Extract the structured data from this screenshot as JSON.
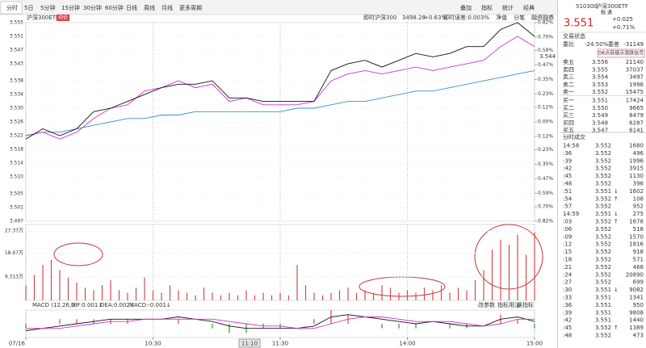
{
  "toolbar": {
    "tabs": [
      "分时",
      "5日",
      "5分钟",
      "15分钟",
      "30分钟",
      "60分钟",
      "日线",
      "周线",
      "月线",
      "更多周期"
    ],
    "tools": [
      "叠加",
      "指标",
      "统计",
      "经典"
    ]
  },
  "info": {
    "name": "沪深300ETF",
    "tag": "均价",
    "index_name": "即时沪深300",
    "index_value": "3498.28",
    "index_change": "+0.63%",
    "error": "即时误差:0.003%",
    "links": [
      "净值",
      "分笔",
      "融资融券"
    ]
  },
  "crosshair": {
    "time": "11:10",
    "price": "3.544"
  },
  "chart_data": [
    {
      "type": "line",
      "x": [
        0,
        8,
        16,
        24,
        32,
        40,
        48,
        56,
        64,
        72,
        80,
        88,
        96,
        104,
        112,
        120,
        128,
        136,
        144,
        152,
        160,
        168,
        176,
        184,
        192,
        200,
        208,
        216,
        224,
        232,
        240
      ],
      "xlim": [
        0,
        240
      ],
      "ylim": [
        3.497,
        3.555
      ],
      "yticks": [
        3.555,
        3.551,
        3.547,
        3.543,
        3.538,
        3.534,
        {
          "value": 3.53,
          "label": "3.530"
        },
        3.526,
        3.522,
        3.518,
        3.514,
        {
          "value": 3.51,
          "label": "3.510"
        },
        3.505,
        3.501,
        3.497
      ],
      "y2lim": [
        -0.82,
        0.82
      ],
      "y2ticks": [
        {
          "value": 0.82,
          "label": "0.82%"
        },
        {
          "value": 0.7,
          "label": "0.70%"
        },
        {
          "value": 0.59,
          "label": "0.59%"
        },
        {
          "value": 0.47,
          "label": "0.47%"
        },
        {
          "value": 0.35,
          "label": "0.35%"
        },
        {
          "value": 0.23,
          "label": "0.23%"
        },
        {
          "value": 0.12,
          "label": "0.12%"
        },
        {
          "value": 0,
          "label": "0.00%"
        },
        {
          "value": -0.12,
          "label": "0.12%"
        },
        {
          "value": -0.23,
          "label": "0.23%"
        },
        {
          "value": -0.35,
          "label": "0.35%"
        },
        {
          "value": -0.47,
          "label": "0.47%"
        },
        {
          "value": -0.59,
          "label": "0.59%"
        },
        {
          "value": -0.7,
          "label": "0.70%"
        },
        {
          "value": -0.82,
          "label": "0.82%"
        }
      ],
      "series": [
        {
          "color": "#3a8fd0",
          "values": [
            3.522,
            3.523,
            3.523,
            3.524,
            3.525,
            3.526,
            3.527,
            3.527,
            3.528,
            3.528,
            3.529,
            3.529,
            3.529,
            3.529,
            3.529,
            3.529,
            3.53,
            3.53,
            3.531,
            3.532,
            3.532,
            3.533,
            3.534,
            3.535,
            3.535,
            3.536,
            3.537,
            3.538,
            3.539,
            3.54,
            3.541
          ]
        },
        {
          "color": "#cc33cc",
          "values": [
            3.522,
            3.523,
            3.521,
            3.523,
            3.527,
            3.53,
            3.531,
            3.535,
            3.536,
            3.538,
            3.536,
            3.537,
            3.532,
            3.533,
            3.531,
            3.531,
            3.531,
            3.532,
            3.538,
            3.54,
            3.541,
            3.54,
            3.541,
            3.542,
            3.541,
            3.542,
            3.543,
            3.544,
            3.548,
            3.551,
            3.548
          ]
        },
        {
          "color": "#111111",
          "values": [
            3.521,
            3.524,
            3.522,
            3.524,
            3.529,
            3.53,
            3.532,
            3.534,
            3.536,
            3.537,
            3.537,
            3.538,
            3.533,
            3.533,
            3.532,
            3.532,
            3.532,
            3.532,
            3.541,
            3.543,
            3.544,
            3.542,
            3.544,
            3.546,
            3.545,
            3.546,
            3.548,
            3.548,
            3.553,
            3.555,
            3.551
          ]
        }
      ]
    },
    {
      "type": "bar",
      "x": [
        0,
        4,
        8,
        12,
        16,
        20,
        24,
        28,
        32,
        36,
        40,
        44,
        48,
        52,
        56,
        60,
        64,
        68,
        72,
        76,
        80,
        84,
        88,
        92,
        96,
        100,
        104,
        108,
        112,
        116,
        120,
        124,
        128,
        132,
        136,
        140,
        144,
        148,
        152,
        156,
        160,
        164,
        168,
        172,
        176,
        180,
        184,
        188,
        192,
        196,
        200,
        204,
        208,
        212,
        216,
        220,
        224,
        228,
        232,
        236,
        240
      ],
      "xlim": [
        0,
        240
      ],
      "ylim": [
        0,
        30
      ],
      "yticks": [
        {
          "value": 27.37,
          "label": "27.37万"
        },
        {
          "value": 18.67,
          "label": "18.67万"
        },
        {
          "value": 9.313,
          "label": "9.313万"
        }
      ],
      "color": "#d24b4b",
      "values": [
        6,
        10,
        14,
        16,
        12,
        9,
        7,
        5,
        4,
        6,
        8,
        4,
        3,
        5,
        9,
        4,
        3,
        6,
        4,
        3,
        2,
        5,
        3,
        2,
        3,
        2,
        4,
        2,
        3,
        2,
        3,
        2,
        14,
        6,
        3,
        2,
        3,
        4,
        5,
        3,
        4,
        3,
        6,
        5,
        3,
        4,
        3,
        5,
        4,
        6,
        3,
        5,
        4,
        8,
        12,
        20,
        24,
        22,
        26,
        18,
        27
      ]
    },
    {
      "type": "macd",
      "title": "MACD (12,26,9)",
      "labels": [
        {
          "text": "DIF:0.001↓",
          "color": "#111111"
        },
        {
          "text": "DEA:0.002↓",
          "color": "#cc33cc"
        },
        {
          "text": "MACD:-0.001↓",
          "color": "#2a9a2a"
        }
      ],
      "tools": [
        "改参数",
        "指标用法",
        "换指标"
      ],
      "x": [
        0,
        8,
        16,
        24,
        32,
        40,
        48,
        56,
        64,
        72,
        80,
        88,
        96,
        104,
        112,
        120,
        128,
        136,
        144,
        152,
        160,
        168,
        176,
        184,
        192,
        200,
        208,
        216,
        224,
        232,
        240
      ],
      "xlim": [
        0,
        240
      ],
      "ylim": [
        -0.006,
        0.006
      ],
      "xticks": [
        {
          "value": 0,
          "label": "07/16"
        },
        {
          "value": 60,
          "label": "10:30"
        },
        {
          "value": 120,
          "label": "11:30"
        },
        {
          "value": 180,
          "label": "14:00"
        },
        {
          "value": 240,
          "label": "15:00"
        }
      ],
      "series": [
        {
          "color": "#111111",
          "values": [
            -0.003,
            -0.002,
            -0.001,
            0,
            0.001,
            0.002,
            0.002,
            0.002,
            0.002,
            0.003,
            0.002,
            0.001,
            -0.001,
            -0.002,
            -0.002,
            -0.002,
            -0.002,
            -0.001,
            0.003,
            0.004,
            0.003,
            0.002,
            0.001,
            0,
            0.001,
            0,
            -0.001,
            -0.001,
            0.002,
            0.003,
            0.001
          ]
        },
        {
          "color": "#cc33cc",
          "values": [
            -0.002,
            -0.002,
            -0.002,
            -0.001,
            0,
            0.001,
            0.001,
            0.002,
            0.002,
            0.002,
            0.002,
            0.002,
            0.001,
            0,
            -0.001,
            -0.001,
            -0.002,
            -0.002,
            0,
            0.002,
            0.003,
            0.003,
            0.002,
            0.001,
            0.001,
            0.001,
            0,
            -0.001,
            0,
            0.002,
            0.002
          ]
        }
      ],
      "bars": {
        "up_color": "#e04040",
        "down_color": "#2a9a2a",
        "values": [
          -0.002,
          0,
          0.002,
          0.002,
          0.002,
          0.002,
          0.002,
          0,
          0,
          0.002,
          0,
          -0.002,
          -0.004,
          -0.004,
          -0.002,
          -0.002,
          0,
          0.002,
          0.006,
          0.004,
          0,
          -0.002,
          -0.002,
          -0.002,
          0,
          -0.002,
          -0.002,
          0,
          0.004,
          0.002,
          -0.002
        ]
      }
    }
  ],
  "quote": {
    "code": "510300",
    "name": "沪深300ETF",
    "tags": "融 通",
    "price": "3.551",
    "change": "+0.025",
    "pct": "+0.71%",
    "status": "交易状态",
    "ratio_label": "委比",
    "ratio": "-24.50%",
    "diff_label": "委差",
    "diff": "-31149",
    "signal": "DK点获提示涨跌信号",
    "book": [
      [
        "卖五",
        "3.556",
        "21140"
      ],
      [
        "卖四",
        "3.555",
        "37037"
      ],
      [
        "卖三",
        "3.554",
        "3497"
      ],
      [
        "卖二",
        "3.553",
        "1996"
      ],
      [
        "卖一",
        "3.552",
        "15475"
      ],
      [
        "买一",
        "3.551",
        "17424"
      ],
      [
        "买二",
        "3.550",
        "9665"
      ],
      [
        "买三",
        "3.549",
        "8479"
      ],
      [
        "买四",
        "3.548",
        "6287"
      ],
      [
        "买五",
        "3.547",
        "6141"
      ]
    ],
    "trades_title": "分时成交",
    "trades": [
      {
        "t": "14:58",
        "p": "3.552",
        "v": "1680"
      },
      {
        "t": ":36",
        "p": "3.552",
        "v": "496"
      },
      {
        "t": ":39",
        "p": "3.552",
        "v": "1996"
      },
      {
        "t": ":42",
        "p": "3.552",
        "v": "3915"
      },
      {
        "t": ":45",
        "p": "3.552",
        "v": "1130"
      },
      {
        "t": ":48",
        "p": "3.552",
        "v": "396"
      },
      {
        "t": ":51",
        "p": "3.551",
        "f": "↓",
        "v": "1602"
      },
      {
        "t": ":54",
        "p": "3.552",
        "f": "↑",
        "v": "108"
      },
      {
        "t": ":57",
        "p": "3.552",
        "v": "952"
      },
      {
        "t": "14:59",
        "p": "3.551",
        "f": "↓",
        "v": "275"
      },
      {
        "t": ":03",
        "p": "3.552",
        "f": "↑",
        "v": "1678"
      },
      {
        "t": ":06",
        "p": "3.552",
        "v": "518"
      },
      {
        "t": ":09",
        "p": "3.552",
        "v": "1570"
      },
      {
        "t": ":12",
        "p": "3.552",
        "v": "1816"
      },
      {
        "t": ":15",
        "p": "3.552",
        "v": "918"
      },
      {
        "t": ":18",
        "p": "3.552",
        "v": "571"
      },
      {
        "t": ":21",
        "p": "3.552",
        "v": "468"
      },
      {
        "t": ":24",
        "p": "3.552",
        "v": "20890"
      },
      {
        "t": ":27",
        "p": "3.552",
        "v": "699"
      },
      {
        "t": ":30",
        "p": "3.551",
        "f": "↓",
        "v": "9082"
      },
      {
        "t": ":33",
        "p": "3.551",
        "v": "1341"
      },
      {
        "t": ":36",
        "p": "3.551",
        "v": "950"
      },
      {
        "t": ":39",
        "p": "3.551",
        "v": "9808"
      },
      {
        "t": ":42",
        "p": "3.551",
        "v": "1440"
      },
      {
        "t": ":45",
        "p": "3.552",
        "f": "↑",
        "v": "1389"
      },
      {
        "t": ":48",
        "p": "3.552",
        "v": "473"
      }
    ]
  }
}
